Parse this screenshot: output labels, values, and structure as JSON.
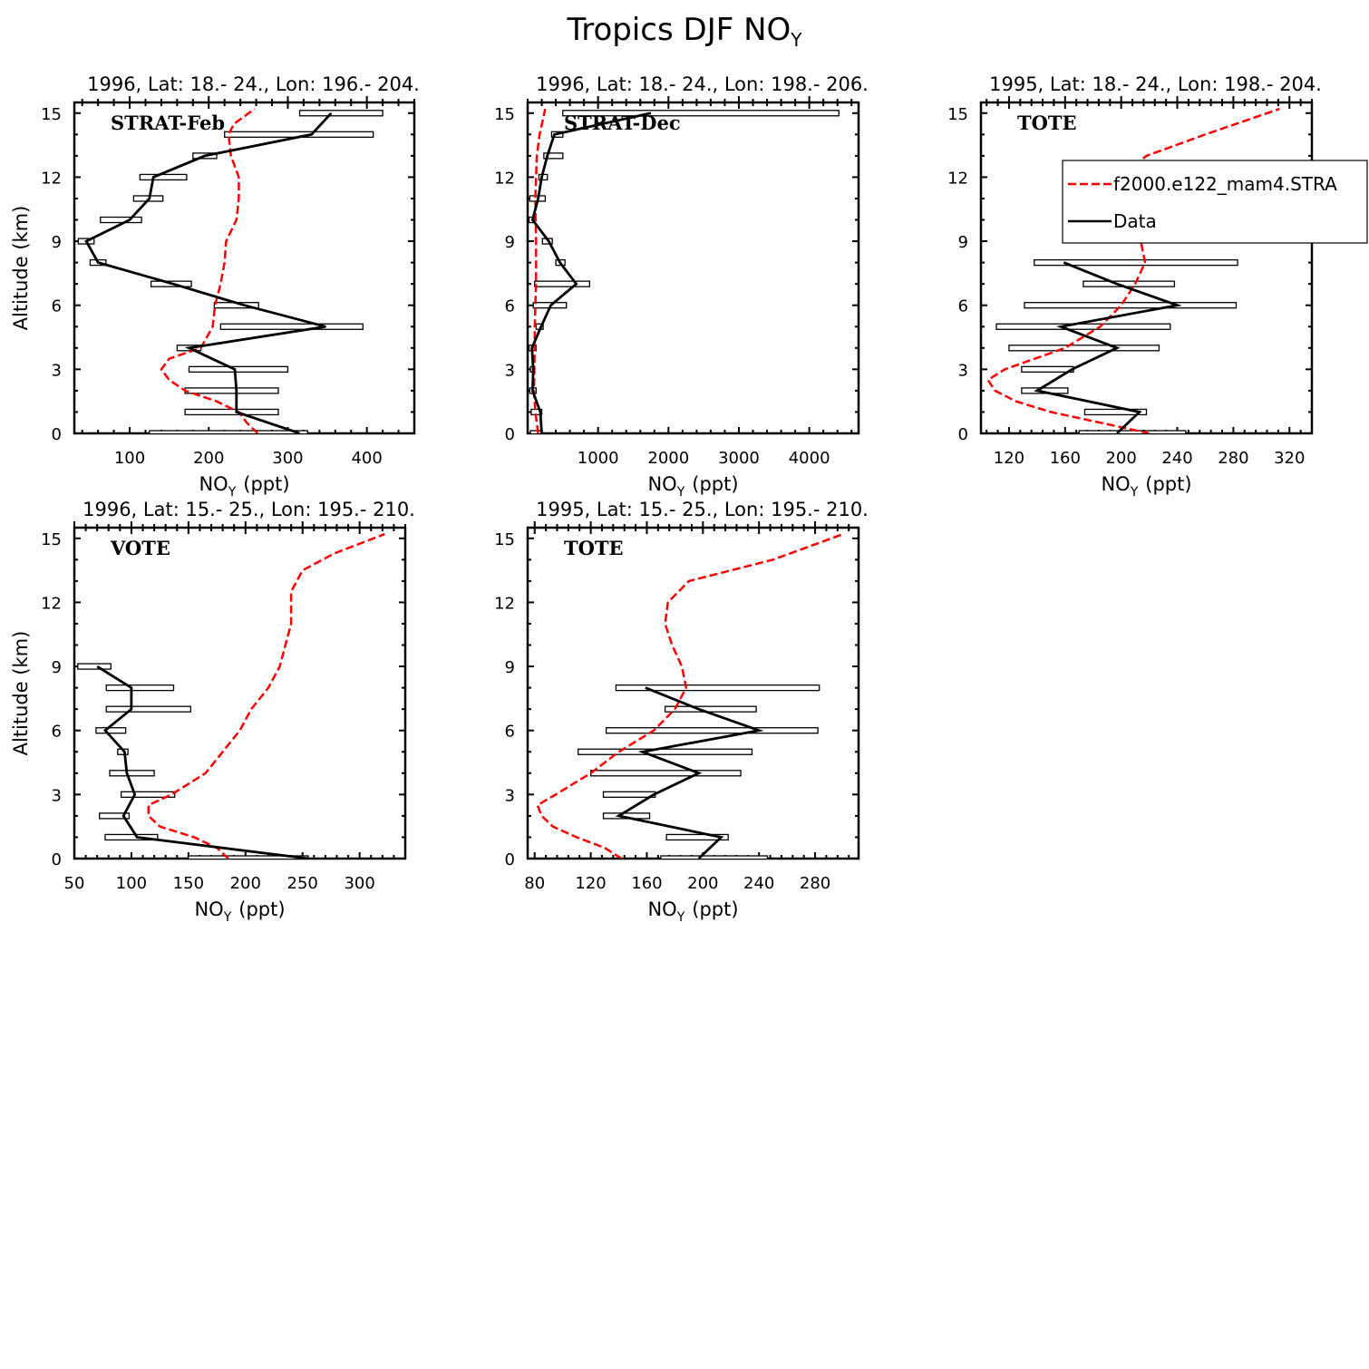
{
  "figure_title": "Tropics DJF NO",
  "figure_title_sub": "Y",
  "legend": {
    "model_label": "f2000.e122_mam4.STRA",
    "data_label": "Data",
    "model_color": "#ff0000",
    "data_color": "#000000"
  },
  "chart_data": [
    {
      "type": "line",
      "subtitle": "1996, Lat: 18.- 24., Lon: 196.- 204.",
      "label": "STRAT-Feb",
      "xlabel": "NO",
      "xlabel_sub": "Y",
      "xlabel_unit": "(ppt)",
      "ylabel": "Altitude (km)",
      "xlim": [
        30,
        460
      ],
      "ylim": [
        0,
        15.5
      ],
      "xticks": [
        100,
        200,
        300,
        400
      ],
      "yticks": [
        0,
        3,
        6,
        9,
        12,
        15
      ],
      "data": {
        "alt": [
          0,
          1,
          2,
          3,
          4,
          5,
          6,
          7,
          8,
          9,
          10,
          11,
          12,
          13,
          14,
          15
        ],
        "median": [
          315,
          235,
          235,
          233,
          175,
          348,
          245,
          155,
          60,
          45,
          100,
          125,
          130,
          195,
          330,
          355
        ],
        "low": [
          125,
          170,
          170,
          175,
          160,
          215,
          207,
          127,
          50,
          35,
          63,
          105,
          113,
          180,
          220,
          315
        ],
        "high": [
          325,
          288,
          288,
          300,
          190,
          395,
          263,
          178,
          70,
          55,
          115,
          142,
          172,
          210,
          408,
          420
        ]
      },
      "model": {
        "alt": [
          0,
          0.5,
          1,
          1.5,
          2,
          2.5,
          3,
          3.5,
          4,
          5,
          6,
          7,
          8,
          9,
          10,
          11,
          12,
          13,
          14,
          14.5,
          15.2
        ],
        "values": [
          262,
          248,
          238,
          210,
          170,
          150,
          140,
          150,
          190,
          205,
          208,
          215,
          220,
          222,
          235,
          238,
          238,
          228,
          225,
          232,
          258
        ]
      }
    },
    {
      "type": "line",
      "subtitle": "1996, Lat: 18.- 24., Lon: 198.- 206.",
      "label": "STRAT-Dec",
      "xlabel": "NO",
      "xlabel_sub": "Y",
      "xlabel_unit": "(ppt)",
      "ylabel": "",
      "xlim": [
        0,
        4700
      ],
      "ylim": [
        0,
        15.5
      ],
      "xticks": [
        1000,
        2000,
        3000,
        4000
      ],
      "yticks": [
        0,
        3,
        6,
        9,
        12,
        15
      ],
      "data": {
        "alt": [
          0,
          1,
          2,
          3,
          4,
          5,
          6,
          7,
          8,
          9,
          10,
          11,
          12,
          13,
          14,
          15
        ],
        "median": [
          200,
          180,
          70,
          80,
          60,
          190,
          330,
          690,
          460,
          300,
          70,
          150,
          200,
          280,
          380,
          1750
        ],
        "low": [
          40,
          50,
          30,
          40,
          20,
          120,
          80,
          100,
          400,
          210,
          20,
          30,
          160,
          230,
          340,
          500
        ],
        "high": [
          200,
          200,
          120,
          100,
          120,
          220,
          550,
          880,
          530,
          350,
          100,
          250,
          280,
          500,
          500,
          4420
        ]
      },
      "model": {
        "alt": [
          0,
          1,
          2,
          3,
          4,
          5,
          6,
          7,
          8,
          9,
          10,
          11,
          12,
          13,
          14,
          15.2
        ],
        "values": [
          150,
          110,
          90,
          95,
          100,
          100,
          110,
          120,
          120,
          120,
          115,
          110,
          120,
          130,
          170,
          250
        ]
      }
    },
    {
      "type": "line",
      "subtitle": "1995, Lat: 18.- 24., Lon: 198.- 204.",
      "label": "TOTE",
      "xlabel": "NO",
      "xlabel_sub": "Y",
      "xlabel_unit": "(ppt)",
      "ylabel": "",
      "xlim": [
        100,
        336
      ],
      "ylim": [
        0,
        15.5
      ],
      "xticks": [
        120,
        160,
        200,
        240,
        280,
        320
      ],
      "yticks": [
        0,
        3,
        6,
        9,
        12,
        15
      ],
      "data": {
        "alt": [
          0,
          1,
          2,
          3,
          4,
          5,
          6,
          7,
          8
        ],
        "median": [
          197,
          213,
          140,
          165,
          197,
          157,
          240,
          197,
          159
        ],
        "low": [
          170,
          174,
          129,
          129,
          120,
          111,
          131,
          173,
          138
        ],
        "high": [
          246,
          218,
          162,
          166,
          227,
          235,
          282,
          238,
          283
        ]
      },
      "model": {
        "alt": [
          0,
          0.5,
          1,
          1.5,
          2,
          2.5,
          3,
          4,
          5,
          6,
          7,
          8,
          9,
          10,
          11,
          12,
          13,
          14,
          15.2
        ],
        "values": [
          220,
          185,
          150,
          125,
          110,
          105,
          117,
          160,
          185,
          200,
          210,
          217,
          214,
          210,
          204,
          200,
          218,
          260,
          313
        ]
      }
    },
    {
      "type": "line",
      "subtitle": "1996, Lat: 15.- 25., Lon: 195.- 210.",
      "label": "VOTE",
      "xlabel": "NO",
      "xlabel_sub": "Y",
      "xlabel_unit": "(ppt)",
      "ylabel": "Altitude (km)",
      "xlim": [
        50,
        340
      ],
      "ylim": [
        0,
        15.5
      ],
      "xticks": [
        50,
        100,
        150,
        200,
        250,
        300
      ],
      "yticks": [
        0,
        3,
        6,
        9,
        12,
        15
      ],
      "data": {
        "alt": [
          0,
          1,
          2,
          3,
          4,
          5,
          6,
          7,
          8,
          9
        ],
        "median": [
          255,
          105,
          93,
          103,
          96,
          94,
          77,
          100,
          100,
          70
        ],
        "low": [
          150,
          77,
          72,
          91,
          81,
          88,
          69,
          78,
          78,
          53
        ],
        "high": [
          255,
          123,
          98,
          138,
          120,
          97,
          95,
          152,
          137,
          82
        ]
      },
      "model": {
        "alt": [
          0,
          0.5,
          1,
          1.5,
          2,
          2.5,
          3,
          4,
          5,
          6,
          7,
          8,
          9,
          10,
          11,
          12,
          12.5,
          13.5,
          14.3,
          15.2
        ],
        "values": [
          185,
          175,
          155,
          125,
          115,
          115,
          135,
          165,
          180,
          195,
          205,
          220,
          230,
          235,
          240,
          240,
          240,
          250,
          278,
          322
        ]
      }
    },
    {
      "type": "line",
      "subtitle": "1995, Lat: 15.- 25., Lon: 195.- 210.",
      "label": "TOTE",
      "xlabel": "NO",
      "xlabel_sub": "Y",
      "xlabel_unit": "(ppt)",
      "ylabel": "",
      "xlim": [
        75,
        311
      ],
      "ylim": [
        0,
        15.5
      ],
      "xticks": [
        80,
        120,
        160,
        200,
        240,
        280
      ],
      "yticks": [
        0,
        3,
        6,
        9,
        12,
        15
      ],
      "data": {
        "alt": [
          0,
          1,
          2,
          3,
          4,
          5,
          6,
          7,
          8
        ],
        "median": [
          197,
          213,
          140,
          165,
          197,
          157,
          240,
          197,
          159
        ],
        "low": [
          170,
          174,
          129,
          129,
          120,
          111,
          131,
          173,
          138
        ],
        "high": [
          246,
          218,
          162,
          166,
          227,
          235,
          282,
          238,
          283
        ]
      },
      "model": {
        "alt": [
          0,
          0.5,
          1,
          1.5,
          2,
          2.5,
          3,
          4,
          5,
          6,
          7,
          8,
          9,
          10,
          11,
          12,
          13,
          14,
          15.2
        ],
        "values": [
          142,
          130,
          110,
          93,
          85,
          82,
          95,
          120,
          140,
          165,
          180,
          188,
          185,
          178,
          173,
          175,
          190,
          250,
          300
        ]
      }
    }
  ]
}
